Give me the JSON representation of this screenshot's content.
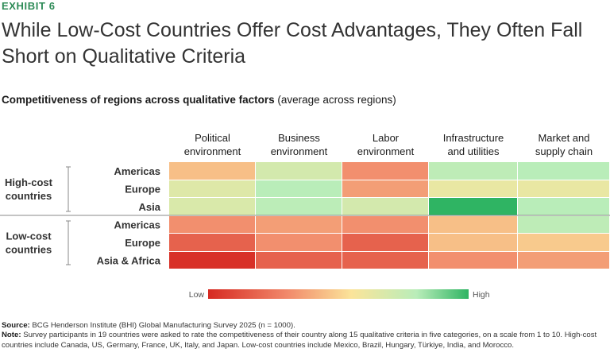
{
  "header": {
    "exhibit": "EXHIBIT 6",
    "title": "While Low-Cost Countries Offer Cost Advantages, They Often Fall Short on Qualitative Criteria",
    "subtitle_bold": "Competitiveness of regions across qualitative factors",
    "subtitle_paren": "(average across regions)"
  },
  "chart_data": {
    "type": "heatmap",
    "title": "Competitiveness of regions across qualitative factors (average across regions)",
    "columns": [
      [
        "Political",
        "environment"
      ],
      [
        "Business",
        "environment"
      ],
      [
        "Labor",
        "environment"
      ],
      [
        "Infrastructure",
        "and utilities"
      ],
      [
        "Market and",
        "supply chain"
      ]
    ],
    "groups": [
      {
        "label": [
          "High-cost",
          "countries"
        ],
        "rows": [
          "Americas",
          "Europe",
          "Asia"
        ]
      },
      {
        "label": [
          "Low-cost",
          "countries"
        ],
        "rows": [
          "Americas",
          "Europe",
          "Asia & Africa"
        ]
      }
    ],
    "scale": {
      "min": 0,
      "max": 1,
      "low_label": "Low",
      "high_label": "High"
    },
    "values": [
      [
        0.45,
        0.7,
        0.32,
        0.78,
        0.8
      ],
      [
        0.66,
        0.8,
        0.36,
        0.62,
        0.62
      ],
      [
        0.68,
        0.79,
        0.7,
        1.0,
        0.8
      ],
      [
        0.32,
        0.36,
        0.32,
        0.45,
        0.78
      ],
      [
        0.18,
        0.32,
        0.18,
        0.45,
        0.48
      ],
      [
        0.02,
        0.18,
        0.18,
        0.32,
        0.36
      ]
    ],
    "colors": {
      "low": "#d62a22",
      "mid_low": "#f1886a",
      "mid": "#fbe49a",
      "mid_high": "#b9edb9",
      "high": "#2fb463"
    }
  },
  "footer": {
    "source_label": "Source:",
    "source_text": "BCG Henderson Institute (BHI) Global Manufacturing Survey 2025 (n = 1000).",
    "note_label": "Note:",
    "note_text": "Survey participants in 19 countries were asked to rate the competitiveness of their country along 15 qualitative criteria in five categories, on a scale from 1 to 10. High-cost countries include Canada, US, Germany, France, UK, Italy, and Japan. Low-cost countries include Mexico, Brazil, Hungary, Türkiye, India, and Morocco."
  }
}
